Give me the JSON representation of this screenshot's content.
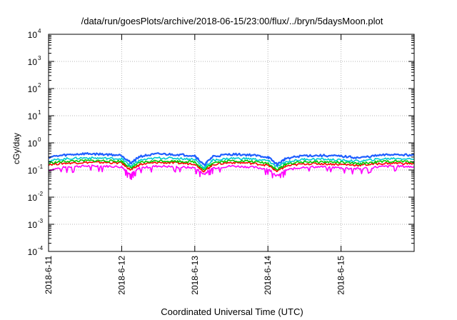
{
  "chart_data": {
    "type": "line",
    "title": "/data/run/goesPlots/archive/2018-06-15/23:00/flux/../bryn/5daysMoon.plot",
    "xlabel": "Coordinated Universal Time (UTC)",
    "ylabel": "cGy/day",
    "y_scale": "log",
    "ylim": [
      0.0001,
      10000
    ],
    "y_ticks": [
      {
        "value": 10000,
        "base": "10",
        "exp": "4"
      },
      {
        "value": 1000,
        "base": "10",
        "exp": "3"
      },
      {
        "value": 100,
        "base": "10",
        "exp": "2"
      },
      {
        "value": 10,
        "base": "10",
        "exp": "1"
      },
      {
        "value": 1,
        "base": "10",
        "exp": "0"
      },
      {
        "value": 0.1,
        "base": "10",
        "exp": "-1"
      },
      {
        "value": 0.01,
        "base": "10",
        "exp": "-2"
      },
      {
        "value": 0.001,
        "base": "10",
        "exp": "-3"
      },
      {
        "value": 0.0001,
        "base": "10",
        "exp": "-4"
      }
    ],
    "xlim": [
      "2018-06-11",
      "2018-06-16"
    ],
    "x_ticks": [
      {
        "value": "2018-06-11",
        "label": "2018-6-11"
      },
      {
        "value": "2018-06-12",
        "label": "2018-6-12"
      },
      {
        "value": "2018-06-13",
        "label": "2018-6-13"
      },
      {
        "value": "2018-06-14",
        "label": "2018-6-14"
      },
      {
        "value": "2018-06-15",
        "label": "2018-6-15"
      }
    ],
    "grid": true,
    "legend": "none",
    "series_colors": [
      "#ff00ff",
      "#ff0000",
      "#00cc00",
      "#00cccc",
      "#1f5fff"
    ],
    "x": [
      "2018-06-11 00:00",
      "2018-06-11 06:00",
      "2018-06-11 12:00",
      "2018-06-11 18:00",
      "2018-06-12 00:00",
      "2018-06-12 03:00",
      "2018-06-12 06:00",
      "2018-06-12 12:00",
      "2018-06-12 18:00",
      "2018-06-13 00:00",
      "2018-06-13 03:00",
      "2018-06-13 06:00",
      "2018-06-13 12:00",
      "2018-06-13 18:00",
      "2018-06-14 00:00",
      "2018-06-14 03:00",
      "2018-06-14 06:00",
      "2018-06-14 12:00",
      "2018-06-14 18:00",
      "2018-06-15 00:00",
      "2018-06-15 06:00",
      "2018-06-15 12:00",
      "2018-06-15 18:00",
      "2018-06-16 00:00"
    ],
    "series": [
      {
        "values": [
          0.1,
          0.13,
          0.14,
          0.14,
          0.13,
          0.07,
          0.12,
          0.14,
          0.13,
          0.12,
          0.07,
          0.12,
          0.14,
          0.13,
          0.11,
          0.06,
          0.1,
          0.13,
          0.13,
          0.12,
          0.11,
          0.13,
          0.14,
          0.13
        ]
      },
      {
        "values": [
          0.16,
          0.18,
          0.19,
          0.19,
          0.18,
          0.1,
          0.16,
          0.19,
          0.18,
          0.17,
          0.09,
          0.16,
          0.19,
          0.18,
          0.15,
          0.09,
          0.14,
          0.17,
          0.17,
          0.16,
          0.15,
          0.17,
          0.18,
          0.17
        ]
      },
      {
        "values": [
          0.18,
          0.21,
          0.22,
          0.22,
          0.21,
          0.12,
          0.19,
          0.22,
          0.21,
          0.2,
          0.1,
          0.19,
          0.22,
          0.21,
          0.18,
          0.1,
          0.17,
          0.2,
          0.2,
          0.19,
          0.17,
          0.2,
          0.21,
          0.2
        ]
      },
      {
        "values": [
          0.22,
          0.26,
          0.28,
          0.27,
          0.26,
          0.14,
          0.23,
          0.28,
          0.27,
          0.25,
          0.12,
          0.23,
          0.27,
          0.26,
          0.22,
          0.13,
          0.2,
          0.25,
          0.25,
          0.23,
          0.21,
          0.25,
          0.27,
          0.25
        ]
      },
      {
        "values": [
          0.3,
          0.36,
          0.4,
          0.38,
          0.35,
          0.18,
          0.32,
          0.39,
          0.37,
          0.34,
          0.15,
          0.32,
          0.38,
          0.36,
          0.3,
          0.16,
          0.27,
          0.34,
          0.34,
          0.32,
          0.28,
          0.34,
          0.38,
          0.35
        ]
      }
    ]
  }
}
